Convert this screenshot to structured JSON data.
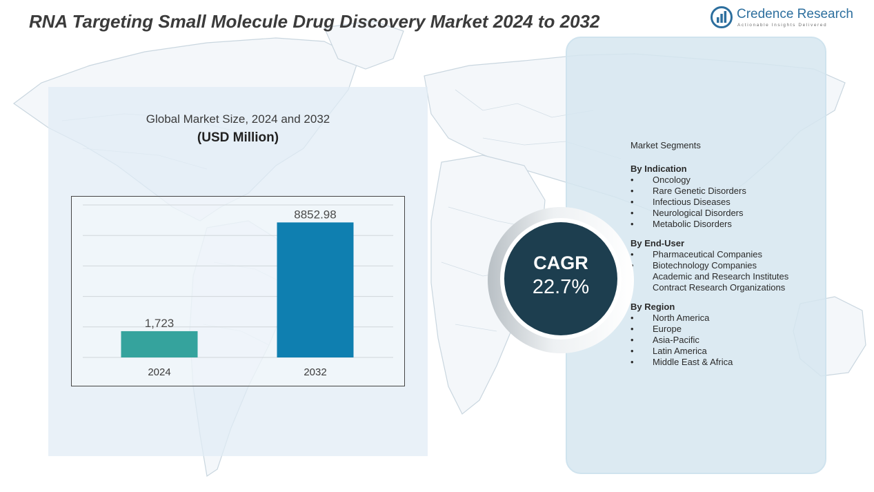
{
  "title": "RNA Targeting Small Molecule Drug Discovery Market 2024 to 2032",
  "brand": {
    "name": "Credence Research",
    "tagline": "Actionable Insights Delivered",
    "color": "#2d6f9e"
  },
  "chart_data": {
    "type": "bar",
    "title": "Global Market Size, 2024 and 2032",
    "subtitle": "(USD Million)",
    "categories": [
      "2024",
      "2032"
    ],
    "values": [
      1723,
      8852.98
    ],
    "value_labels": [
      "1,723",
      "8852.98"
    ],
    "colors": [
      "#35a39d",
      "#0f7fb0"
    ],
    "ylim": [
      0,
      10000
    ],
    "grid": true,
    "legend": "none"
  },
  "cagr": {
    "label": "CAGR",
    "value": "22.7%",
    "color": "#1d3e4f"
  },
  "segments": {
    "heading": "Market Segments",
    "groups": [
      {
        "title": "By Indication",
        "items": [
          "Oncology",
          "Rare Genetic Disorders",
          "Infectious Diseases",
          "Neurological Disorders",
          "Metabolic Disorders"
        ]
      },
      {
        "title": "By End-User",
        "items": [
          "Pharmaceutical Companies",
          "Biotechnology Companies",
          "Academic and Research Institutes",
          "Contract Research Organizations"
        ]
      },
      {
        "title": "By Region",
        "items": [
          "North America",
          "Europe",
          "Asia-Pacific",
          "Latin America",
          "Middle East & Africa"
        ]
      }
    ]
  }
}
